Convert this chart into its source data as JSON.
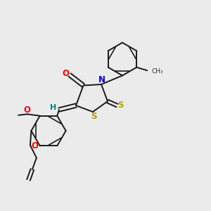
{
  "background_color": "#ebebeb",
  "figsize": [
    3.0,
    3.0
  ],
  "dpi": 100,
  "bond_color": "#1a1a1a",
  "atom_colors": {
    "O": "#ff0000",
    "N": "#0000cc",
    "S": "#b8a000",
    "H": "#008080",
    "C": "#1a1a1a"
  },
  "label_fontsize": 8.5,
  "bond_lw": 1.4
}
